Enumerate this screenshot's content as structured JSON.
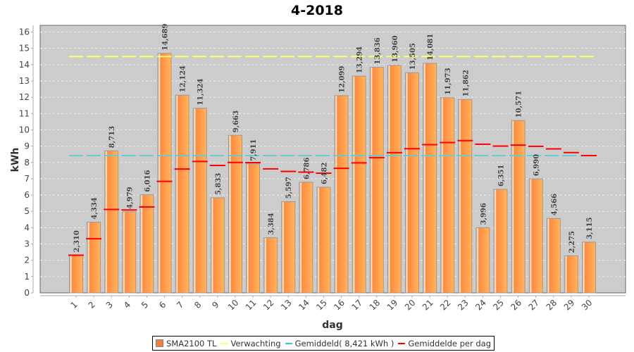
{
  "chart_data": {
    "type": "bar",
    "title": "4-2018",
    "xlabel": "dag",
    "ylabel": "kWh",
    "ylim": [
      0,
      16.4
    ],
    "yticks": [
      0,
      1,
      2,
      3,
      4,
      5,
      6,
      7,
      8,
      9,
      10,
      11,
      12,
      13,
      14,
      15,
      16
    ],
    "grid": true,
    "categories": [
      "1",
      "2",
      "3",
      "4",
      "5",
      "6",
      "7",
      "8",
      "9",
      "10",
      "11",
      "12",
      "13",
      "14",
      "15",
      "16",
      "17",
      "18",
      "19",
      "20",
      "21",
      "22",
      "23",
      "24",
      "25",
      "26",
      "27",
      "28",
      "29",
      "30"
    ],
    "series": [
      {
        "name": "SMA2100 TL",
        "kind": "bar",
        "color": "#ff8c40",
        "values": [
          2.31,
          4.334,
          8.713,
          4.979,
          6.016,
          14.689,
          12.124,
          11.324,
          5.833,
          9.663,
          7.911,
          3.384,
          5.597,
          6.786,
          6.482,
          12.099,
          13.294,
          13.836,
          13.96,
          13.505,
          14.081,
          11.973,
          11.862,
          3.996,
          6.351,
          10.571,
          6.99,
          4.566,
          2.275,
          3.115
        ],
        "labels": [
          "2,310",
          "4,334",
          "8,713",
          "4,979",
          "6,016",
          "14,689",
          "12,124",
          "11,324",
          "5,833",
          "9,663",
          "7,911",
          "3,384",
          "5,597",
          "6,786",
          "6,482",
          "12,099",
          "13,294",
          "13,836",
          "13,960",
          "13,505",
          "14,081",
          "11,973",
          "11,862",
          "3,996",
          "6,351",
          "10,571",
          "6,990",
          "4,566",
          "2,275",
          "3,115"
        ]
      },
      {
        "name": "Verwachting",
        "kind": "dashed-line",
        "color": "#ffff66",
        "value": 14.5
      },
      {
        "name": "Gemiddeld( 8,421 kWh )",
        "kind": "dashed-line",
        "color": "#66cccc",
        "value": 8.421
      },
      {
        "name": "Gemiddelde per dag",
        "kind": "marker",
        "color": "#ff0000",
        "values": [
          2.31,
          3.322,
          5.119,
          5.084,
          5.27,
          6.84,
          7.595,
          8.061,
          7.814,
          7.999,
          7.991,
          7.607,
          7.452,
          7.405,
          7.343,
          7.64,
          7.973,
          8.299,
          8.597,
          8.842,
          9.091,
          9.222,
          9.337,
          9.115,
          9.004,
          9.064,
          8.987,
          8.83,
          8.604,
          8.421
        ]
      }
    ],
    "legend": {
      "position": "bottom",
      "items": [
        {
          "label": "SMA2100 TL",
          "color": "#f08040",
          "shape": "box"
        },
        {
          "label": "Verwachting",
          "color": "#ffff66",
          "shape": "line"
        },
        {
          "label": "Gemiddeld( 8,421 kWh )",
          "color": "#33cccc",
          "shape": "line"
        },
        {
          "label": "Gemiddelde per dag",
          "color": "#ff0000",
          "shape": "line"
        }
      ]
    }
  }
}
